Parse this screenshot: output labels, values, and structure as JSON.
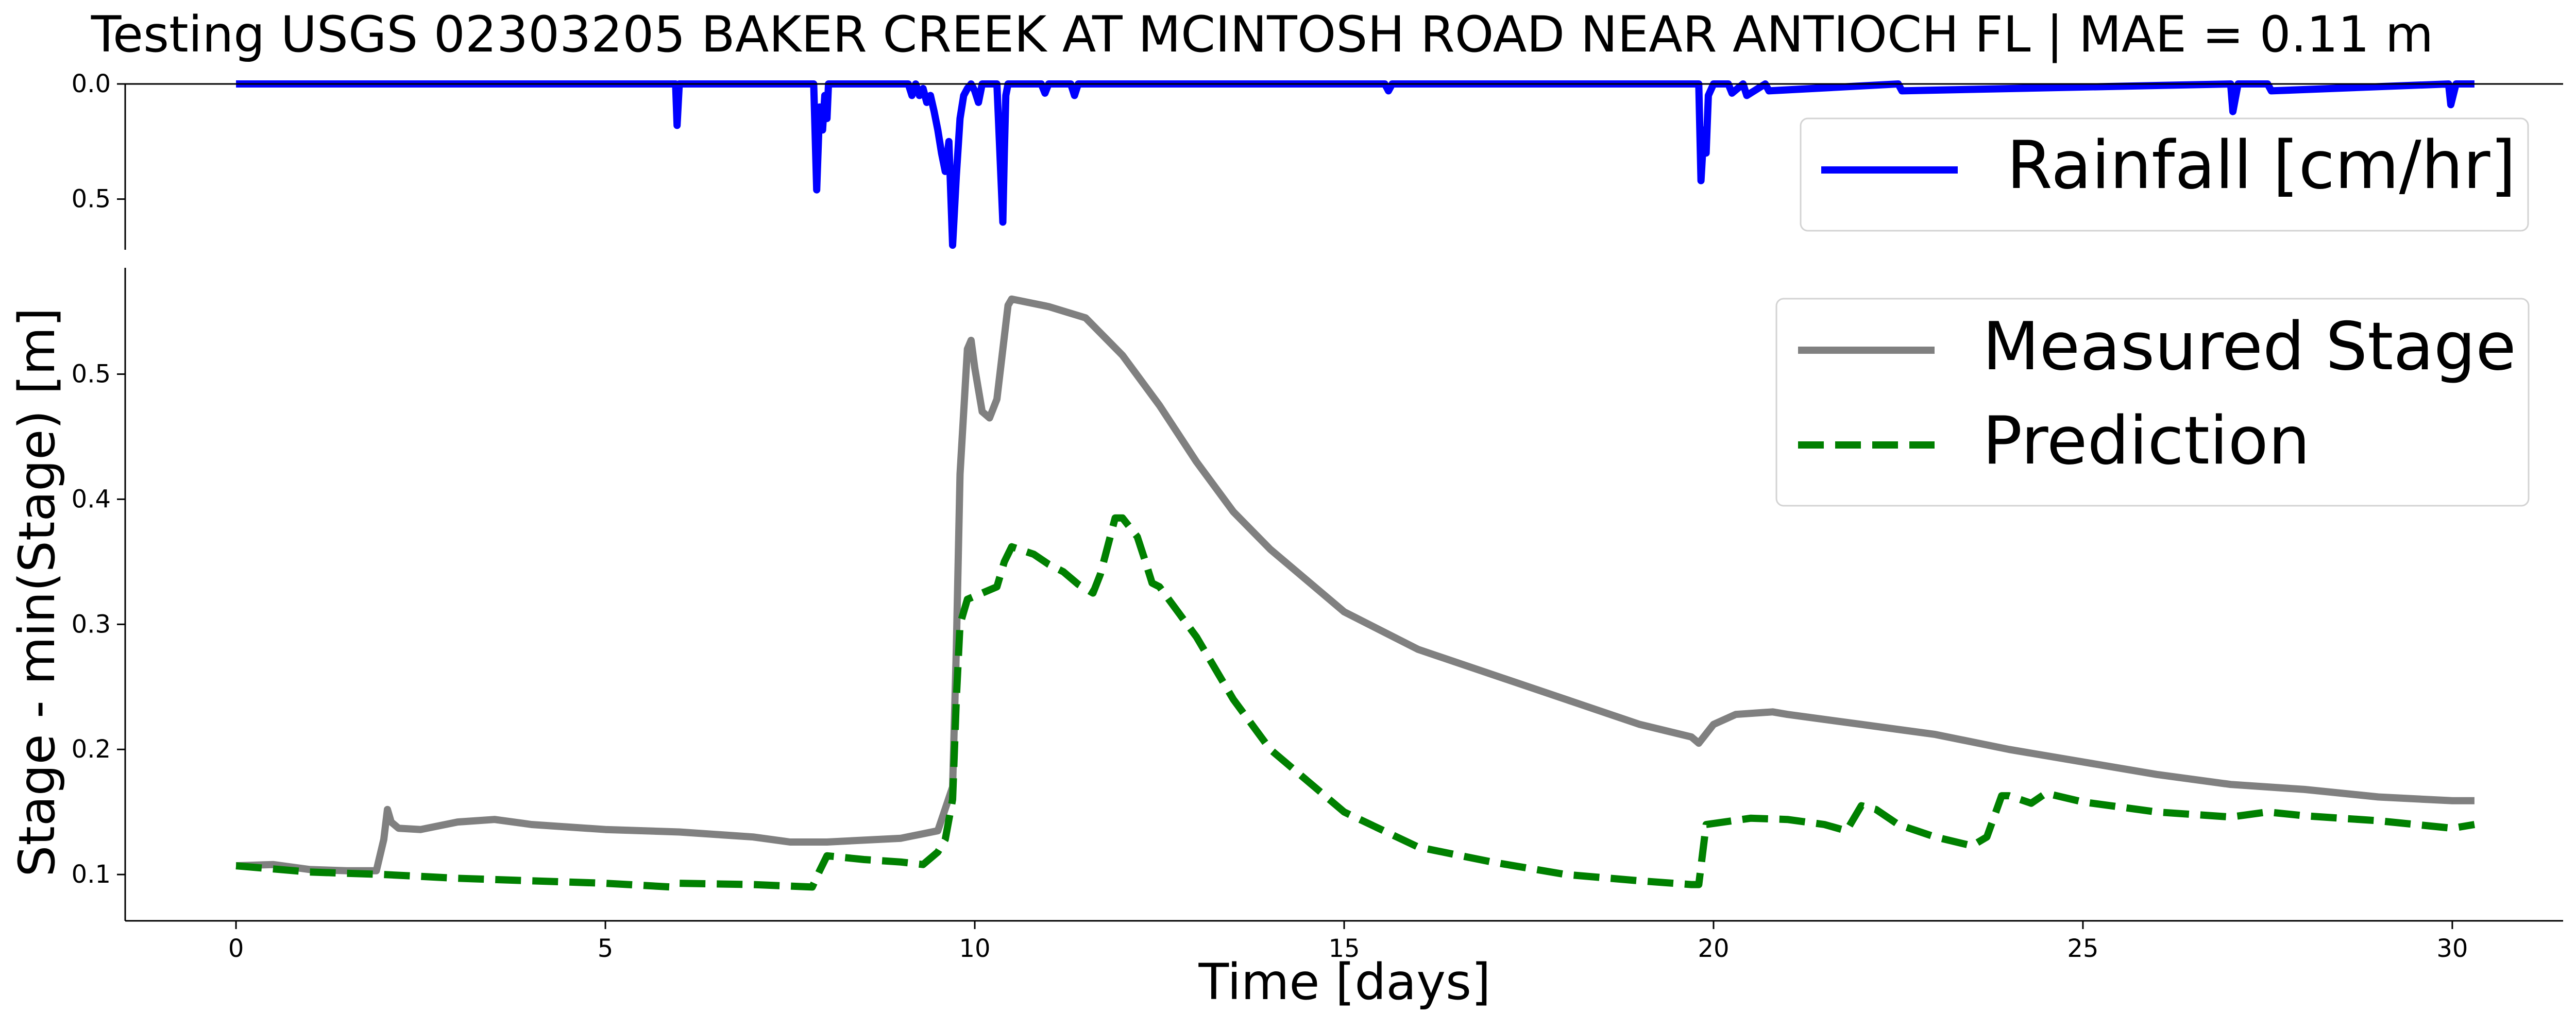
{
  "chart_data": [
    {
      "type": "line",
      "panel": "rainfall",
      "title": "Testing USGS 02303205 BAKER CREEK AT MCINTOSH ROAD NEAR ANTIOCH FL | MAE = 0.11 m",
      "y_inverted": true,
      "ylim": [
        0.0,
        0.72
      ],
      "yticks": [
        0.0,
        0.5
      ],
      "ytick_labels": [
        "0.0",
        "0.5"
      ],
      "xlim": [
        -1.5,
        31.5
      ],
      "legend_position": "upper-right",
      "series": [
        {
          "name": "Rainfall [cm/hr]",
          "color": "#0000ff",
          "style": "solid",
          "x": [
            0,
            5.95,
            5.97,
            6.0,
            6.05,
            7.82,
            7.86,
            7.9,
            7.94,
            7.97,
            8.0,
            8.02,
            8.05,
            9.1,
            9.15,
            9.2,
            9.25,
            9.3,
            9.35,
            9.4,
            9.45,
            9.5,
            9.55,
            9.6,
            9.65,
            9.7,
            9.75,
            9.8,
            9.85,
            9.9,
            9.95,
            10.0,
            10.05,
            10.1,
            10.2,
            10.3,
            10.38,
            10.4,
            10.42,
            10.45,
            10.5,
            10.9,
            10.95,
            11.0,
            11.3,
            11.35,
            11.4,
            15.55,
            15.6,
            15.65,
            19.8,
            19.83,
            19.87,
            19.9,
            19.93,
            20.0,
            20.2,
            20.25,
            20.4,
            20.45,
            20.7,
            20.75,
            22.5,
            22.55,
            27.0,
            27.03,
            27.1,
            27.5,
            27.55,
            29.95,
            29.98,
            30.05,
            30.3
          ],
          "values": [
            0,
            0,
            0.18,
            0,
            0,
            0,
            0.46,
            0.1,
            0.2,
            0.05,
            0.15,
            0,
            0,
            0,
            0.05,
            0,
            0.05,
            0.02,
            0.08,
            0.05,
            0.12,
            0.2,
            0.3,
            0.38,
            0.25,
            0.7,
            0.4,
            0.15,
            0.05,
            0.02,
            0,
            0.03,
            0.08,
            0,
            0,
            0,
            0.6,
            0.3,
            0.05,
            0,
            0,
            0,
            0.04,
            0,
            0,
            0.05,
            0,
            0,
            0.03,
            0,
            0,
            0.42,
            0.2,
            0.3,
            0.05,
            0,
            0,
            0.04,
            0,
            0.05,
            0,
            0.03,
            0,
            0.03,
            0,
            0.12,
            0,
            0,
            0.03,
            0,
            0.09,
            0,
            0
          ]
        }
      ]
    },
    {
      "type": "line",
      "panel": "stage",
      "xlabel": "Time [days]",
      "ylabel": "Stage - min(Stage) [m]",
      "xlim": [
        -1.5,
        31.5
      ],
      "ylim": [
        0.063,
        0.585
      ],
      "xticks": [
        0,
        5,
        10,
        15,
        20,
        25,
        30
      ],
      "xtick_labels": [
        "0",
        "5",
        "10",
        "15",
        "20",
        "25",
        "30"
      ],
      "yticks": [
        0.1,
        0.2,
        0.3,
        0.4,
        0.5
      ],
      "ytick_labels": [
        "0.1",
        "0.2",
        "0.3",
        "0.4",
        "0.5"
      ],
      "grid": false,
      "legend_position": "upper-right",
      "series": [
        {
          "name": "Measured Stage",
          "color": "#808080",
          "style": "solid",
          "x": [
            0,
            0.5,
            1.0,
            1.5,
            1.9,
            2.0,
            2.05,
            2.1,
            2.2,
            2.5,
            3.0,
            3.5,
            4.0,
            5.0,
            6.0,
            7.0,
            7.5,
            8.0,
            9.0,
            9.5,
            9.7,
            9.75,
            9.8,
            9.9,
            9.95,
            10.0,
            10.1,
            10.2,
            10.3,
            10.45,
            10.5,
            11.0,
            11.5,
            12.0,
            12.5,
            13.0,
            13.5,
            14.0,
            15.0,
            16.0,
            17.0,
            18.0,
            19.0,
            19.7,
            19.8,
            20.0,
            20.3,
            20.8,
            21.0,
            22.0,
            23.0,
            24.0,
            25.0,
            26.0,
            27.0,
            28.0,
            29.0,
            30.0,
            30.3
          ],
          "values": [
            0.107,
            0.108,
            0.104,
            0.103,
            0.103,
            0.128,
            0.152,
            0.142,
            0.137,
            0.136,
            0.142,
            0.144,
            0.14,
            0.136,
            0.134,
            0.13,
            0.126,
            0.126,
            0.129,
            0.135,
            0.17,
            0.28,
            0.42,
            0.52,
            0.527,
            0.505,
            0.47,
            0.465,
            0.48,
            0.555,
            0.56,
            0.554,
            0.545,
            0.515,
            0.475,
            0.43,
            0.39,
            0.36,
            0.31,
            0.28,
            0.26,
            0.24,
            0.22,
            0.21,
            0.205,
            0.22,
            0.228,
            0.23,
            0.228,
            0.22,
            0.212,
            0.2,
            0.19,
            0.18,
            0.172,
            0.168,
            0.162,
            0.159,
            0.159
          ]
        },
        {
          "name": "Prediction",
          "color": "#008000",
          "style": "dashed",
          "x": [
            0,
            1.0,
            2.0,
            3.0,
            4.0,
            5.0,
            5.9,
            6.0,
            7.0,
            7.8,
            7.9,
            8.0,
            8.5,
            9.0,
            9.3,
            9.5,
            9.6,
            9.7,
            9.75,
            9.8,
            9.9,
            10.1,
            10.3,
            10.4,
            10.5,
            10.8,
            11.0,
            11.2,
            11.4,
            11.6,
            11.7,
            11.9,
            12.0,
            12.2,
            12.3,
            12.4,
            12.5,
            13.0,
            13.5,
            14.0,
            15.0,
            16.0,
            17.0,
            18.0,
            19.0,
            19.7,
            19.8,
            19.9,
            20.5,
            21.0,
            21.5,
            21.8,
            22.0,
            22.2,
            22.5,
            23.0,
            23.5,
            23.7,
            23.9,
            24.0,
            24.3,
            24.5,
            25.0,
            26.0,
            27.0,
            27.5,
            28.0,
            29.0,
            30.0,
            30.3
          ],
          "values": [
            0.107,
            0.102,
            0.1,
            0.097,
            0.095,
            0.093,
            0.09,
            0.093,
            0.092,
            0.09,
            0.103,
            0.115,
            0.112,
            0.11,
            0.108,
            0.118,
            0.128,
            0.16,
            0.24,
            0.3,
            0.32,
            0.325,
            0.33,
            0.35,
            0.362,
            0.356,
            0.348,
            0.342,
            0.332,
            0.325,
            0.34,
            0.385,
            0.385,
            0.37,
            0.352,
            0.333,
            0.33,
            0.29,
            0.24,
            0.2,
            0.15,
            0.122,
            0.11,
            0.1,
            0.095,
            0.092,
            0.092,
            0.14,
            0.145,
            0.144,
            0.14,
            0.135,
            0.155,
            0.152,
            0.14,
            0.13,
            0.123,
            0.13,
            0.163,
            0.163,
            0.157,
            0.165,
            0.158,
            0.15,
            0.146,
            0.15,
            0.147,
            0.143,
            0.137,
            0.14
          ]
        }
      ]
    }
  ]
}
